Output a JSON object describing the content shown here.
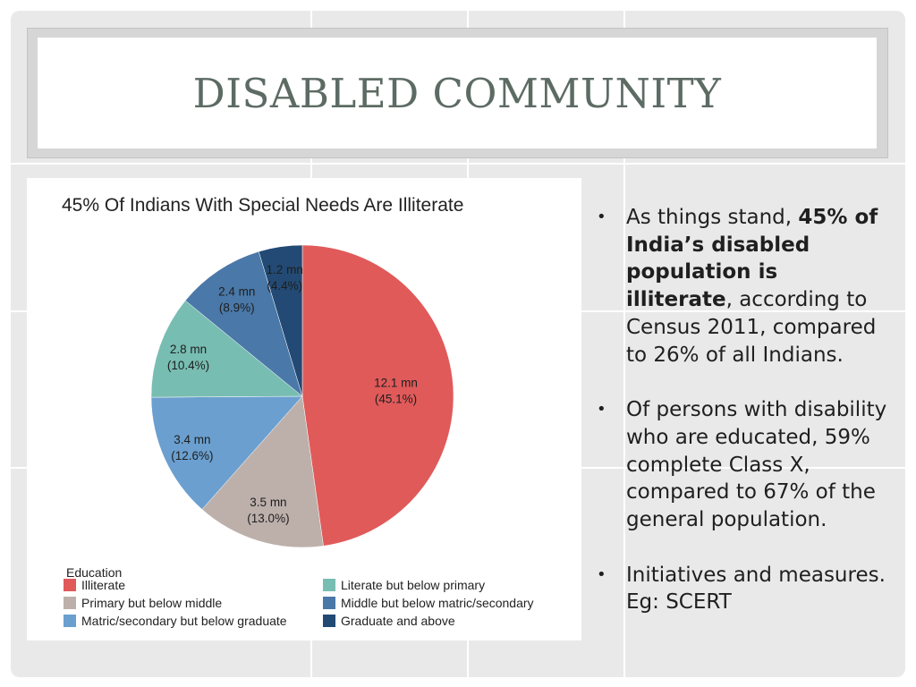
{
  "slide": {
    "title": "DISABLED COMMUNITY"
  },
  "chart_data": {
    "type": "pie",
    "title": "45% Of Indians With Special Needs Are Illiterate",
    "legend_title": "Education",
    "legend_position": "bottom",
    "slices": [
      {
        "category": "Illiterate",
        "value_label": "12.1 mn",
        "percent_label": "(45.1%)",
        "value": 12.1,
        "percent": 45.1,
        "color": "#e05a5a"
      },
      {
        "category": "Primary but below middle",
        "value_label": "3.5 mn",
        "percent_label": "(13.0%)",
        "value": 3.5,
        "percent": 13.0,
        "color": "#bdb0ab"
      },
      {
        "category": "Matric/secondary but below graduate",
        "value_label": "3.4 mn",
        "percent_label": "(12.6%)",
        "value": 3.4,
        "percent": 12.6,
        "color": "#6b9fcf"
      },
      {
        "category": "Literate but below primary",
        "value_label": "2.8 mn",
        "percent_label": "(10.4%)",
        "value": 2.8,
        "percent": 10.4,
        "color": "#78bdb2"
      },
      {
        "category": "Middle but below matric/secondary",
        "value_label": "2.4 mn",
        "percent_label": "(8.9%)",
        "value": 2.4,
        "percent": 8.9,
        "color": "#4a78a8"
      },
      {
        "category": "Graduate and above",
        "value_label": "1.2 mn",
        "percent_label": "(4.4%)",
        "value": 1.2,
        "percent": 4.4,
        "color": "#234a74"
      }
    ],
    "legend_order": [
      "Illiterate",
      "Literate but below primary",
      "Primary but below middle",
      "Middle but below matric/secondary",
      "Matric/secondary but below graduate",
      "Graduate and above"
    ]
  },
  "bullets": [
    {
      "before": "As things stand, ",
      "bold": "45% of India’s disabled population is illiterate",
      "after": ", according to Census 2011, compared to 26% of all Indians."
    },
    {
      "before": "Of persons with disability who are educated, 59% complete Class X, compared to 67% of the general population.",
      "bold": "",
      "after": ""
    },
    {
      "before": "Initiatives and measures. Eg: SCERT",
      "bold": "",
      "after": ""
    }
  ],
  "bullet_symbol": "•"
}
